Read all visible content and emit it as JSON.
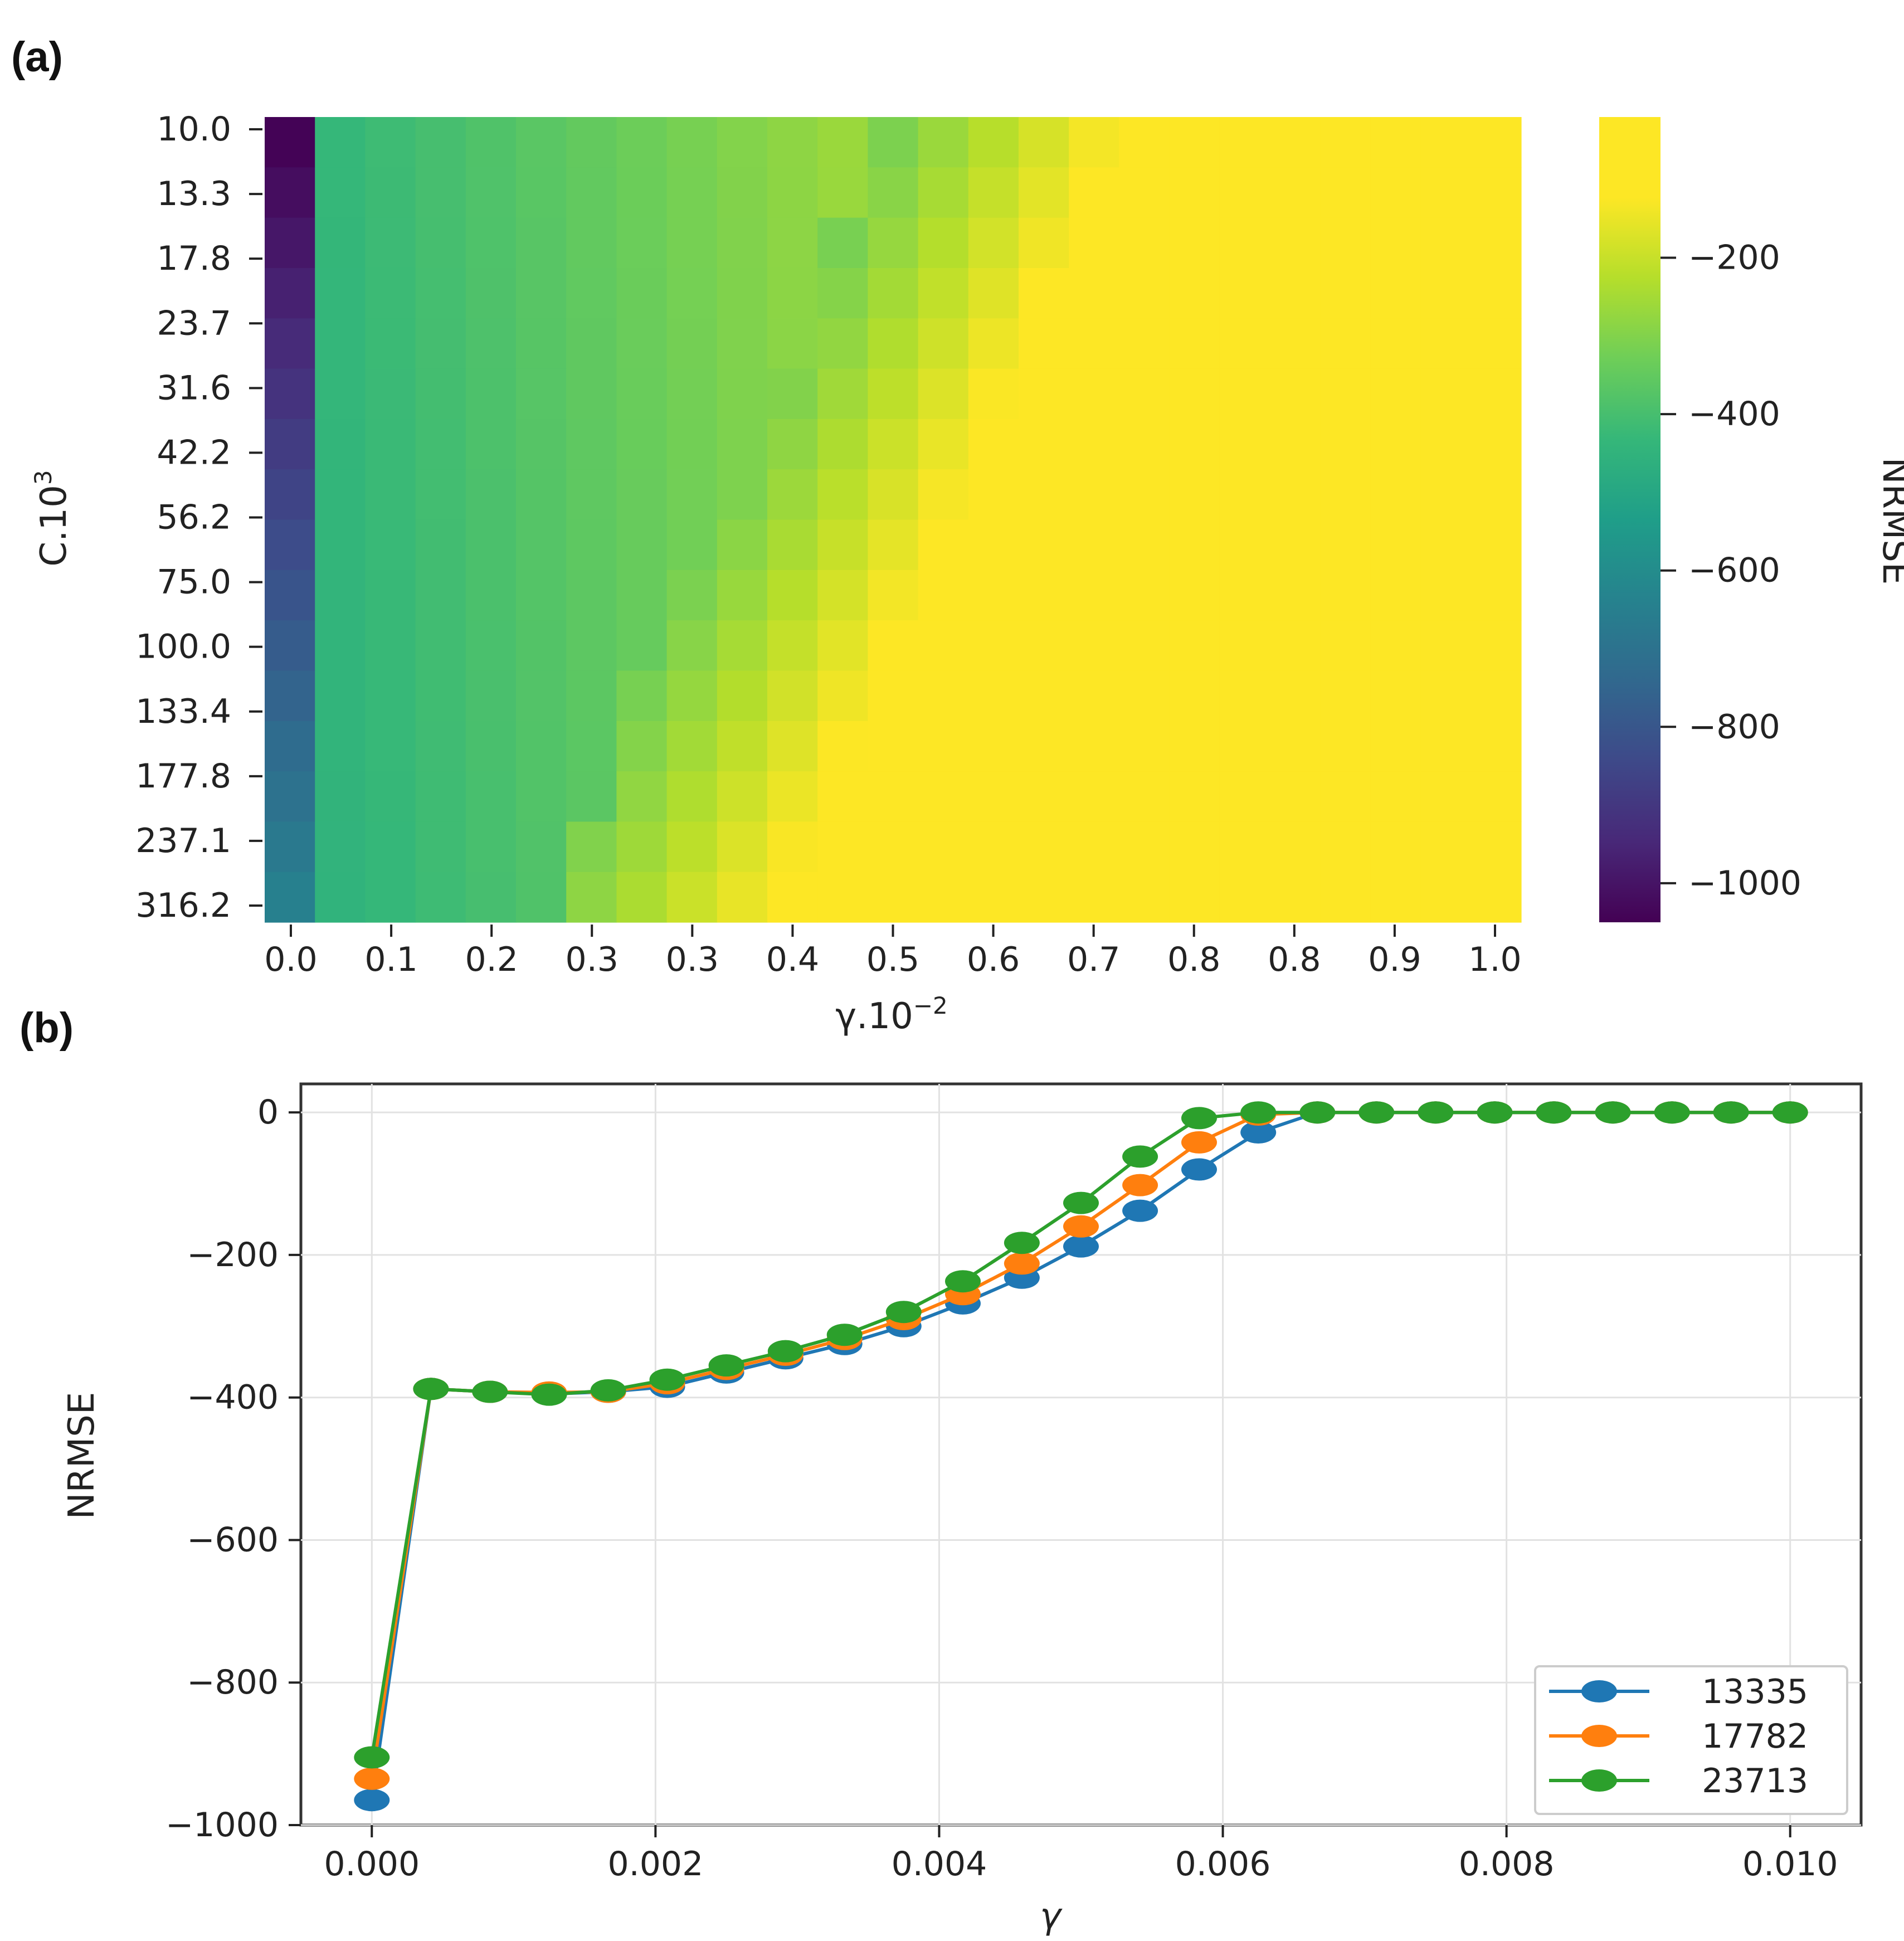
{
  "colors": {
    "series": [
      "#1f77b4",
      "#ff7f0e",
      "#2ca02c"
    ],
    "grid": "#e2e2e2",
    "axis": "#333333"
  },
  "chart_data": [
    {
      "panel_label": "(a)",
      "type": "heatmap",
      "xlabel": "γ.10",
      "xlabel_exp": "−2",
      "ylabel": "C.10",
      "ylabel_exp": "3",
      "x_ticks": [
        "0.0",
        "0.1",
        "0.2",
        "0.3",
        "0.3",
        "0.4",
        "0.5",
        "0.6",
        "0.7",
        "0.8",
        "0.8",
        "0.9",
        "1.0"
      ],
      "y_ticks": [
        "10.0",
        "13.3",
        "17.8",
        "23.7",
        "31.6",
        "42.2",
        "56.2",
        "75.0",
        "100.0",
        "133.4",
        "177.8",
        "237.1",
        "316.2"
      ],
      "grid_columns": 25,
      "grid_rows": 16,
      "value_range": [
        -1050,
        -50
      ],
      "description_values": "first column about -1050 to -600, green plateau about -420 to -300, yellow region about -50",
      "colorbar": {
        "label": "NRMSE",
        "ticks": [
          -200,
          -400,
          -600,
          -800,
          -1000
        ],
        "tick_labels": [
          "−200",
          "−400",
          "−600",
          "−800",
          "−1000"
        ],
        "range": [
          -1050,
          -20
        ]
      }
    },
    {
      "panel_label": "(b)",
      "type": "line",
      "xlabel": "γ",
      "ylabel": "NRMSE",
      "xlim": [
        -0.0005,
        0.0105
      ],
      "ylim": [
        -1000,
        40
      ],
      "x_ticks": [
        0.0,
        0.002,
        0.004,
        0.006,
        0.008,
        0.01
      ],
      "x_tick_labels": [
        "0.000",
        "0.002",
        "0.004",
        "0.006",
        "0.008",
        "0.010"
      ],
      "y_ticks": [
        0,
        -200,
        -400,
        -600,
        -800,
        -1000
      ],
      "y_tick_labels": [
        "0",
        "−200",
        "−400",
        "−600",
        "−800",
        "−1000"
      ],
      "grid": true,
      "legend_position": "bottom-right",
      "x": [
        0.0,
        0.000417,
        0.000833,
        0.00125,
        0.001667,
        0.002083,
        0.0025,
        0.002917,
        0.003333,
        0.00375,
        0.004167,
        0.004583,
        0.005,
        0.005417,
        0.005833,
        0.00625,
        0.006667,
        0.007083,
        0.0075,
        0.007917,
        0.008333,
        0.00875,
        0.009167,
        0.009583,
        0.01
      ],
      "series": [
        {
          "name": "13335",
          "values": [
            -965,
            -388,
            -392,
            -395,
            -392,
            -385,
            -365,
            -345,
            -325,
            -300,
            -268,
            -232,
            -188,
            -138,
            -80,
            -28,
            0,
            0,
            0,
            0,
            0,
            0,
            0,
            0,
            0
          ]
        },
        {
          "name": "17782",
          "values": [
            -935,
            -388,
            -392,
            -393,
            -392,
            -380,
            -360,
            -340,
            -318,
            -290,
            -255,
            -212,
            -160,
            -102,
            -42,
            -3,
            0,
            0,
            0,
            0,
            0,
            0,
            0,
            0,
            0
          ]
        },
        {
          "name": "23713",
          "values": [
            -905,
            -388,
            -392,
            -396,
            -390,
            -375,
            -355,
            -335,
            -312,
            -280,
            -237,
            -183,
            -127,
            -62,
            -8,
            0,
            0,
            0,
            0,
            0,
            0,
            0,
            0,
            0,
            0
          ]
        }
      ]
    }
  ]
}
